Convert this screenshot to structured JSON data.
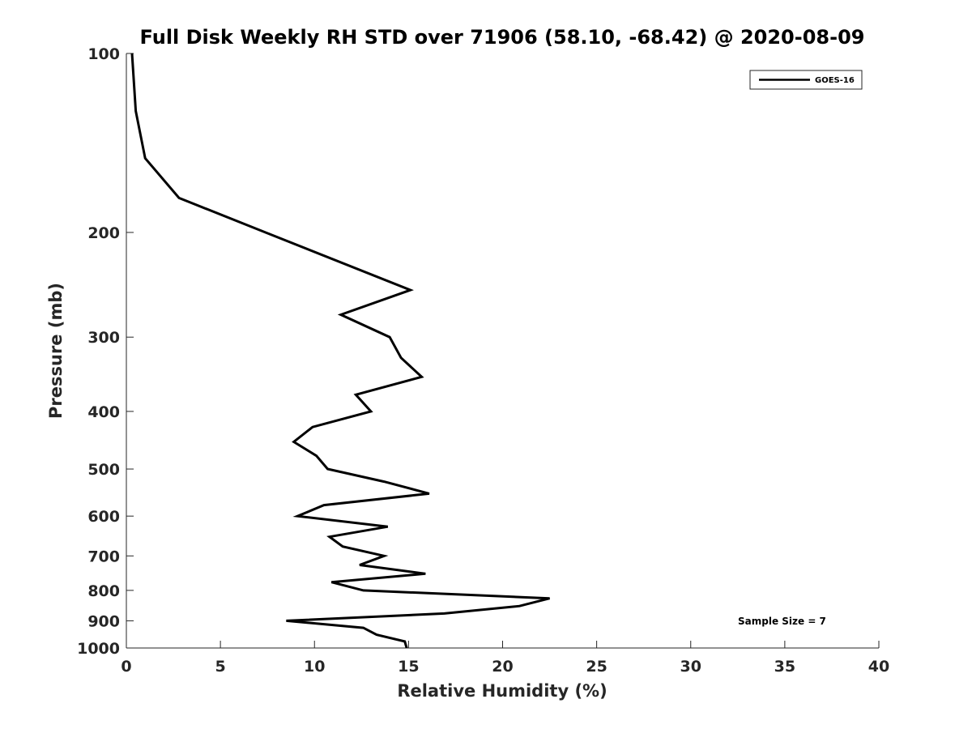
{
  "chart_data": {
    "type": "line",
    "title": "Full Disk Weekly RH STD over 71906 (58.10, -68.42) @ 2020-08-09",
    "xlabel": "Relative Humidity (%)",
    "ylabel": "Pressure (mb)",
    "xlim": [
      0,
      40
    ],
    "ylim": [
      100,
      1000
    ],
    "y_scale": "log",
    "y_reversed": true,
    "grid": false,
    "legend_position": "top-right",
    "xticks": [
      0,
      5,
      10,
      15,
      20,
      25,
      30,
      35,
      40
    ],
    "yticks": [
      100,
      200,
      300,
      400,
      500,
      600,
      700,
      800,
      900,
      1000
    ],
    "annotation": "Sample Size = 7",
    "series": [
      {
        "name": "GOES-16",
        "color": "#000000",
        "points": [
          {
            "rh": 0.3,
            "p": 100
          },
          {
            "rh": 0.5,
            "p": 125
          },
          {
            "rh": 1.0,
            "p": 150
          },
          {
            "rh": 2.8,
            "p": 175
          },
          {
            "rh": 7.4,
            "p": 200
          },
          {
            "rh": 15.1,
            "p": 250
          },
          {
            "rh": 11.4,
            "p": 275
          },
          {
            "rh": 14.0,
            "p": 300
          },
          {
            "rh": 14.6,
            "p": 325
          },
          {
            "rh": 15.7,
            "p": 350
          },
          {
            "rh": 12.2,
            "p": 375
          },
          {
            "rh": 13.0,
            "p": 400
          },
          {
            "rh": 9.9,
            "p": 425
          },
          {
            "rh": 8.9,
            "p": 450
          },
          {
            "rh": 10.1,
            "p": 475
          },
          {
            "rh": 10.7,
            "p": 500
          },
          {
            "rh": 13.7,
            "p": 525
          },
          {
            "rh": 16.1,
            "p": 550
          },
          {
            "rh": 10.5,
            "p": 575
          },
          {
            "rh": 9.1,
            "p": 600
          },
          {
            "rh": 13.9,
            "p": 625
          },
          {
            "rh": 10.8,
            "p": 650
          },
          {
            "rh": 11.5,
            "p": 675
          },
          {
            "rh": 13.7,
            "p": 700
          },
          {
            "rh": 12.4,
            "p": 725
          },
          {
            "rh": 15.9,
            "p": 750
          },
          {
            "rh": 10.9,
            "p": 775
          },
          {
            "rh": 12.6,
            "p": 800
          },
          {
            "rh": 22.5,
            "p": 825
          },
          {
            "rh": 20.9,
            "p": 850
          },
          {
            "rh": 16.9,
            "p": 875
          },
          {
            "rh": 8.5,
            "p": 900
          },
          {
            "rh": 12.6,
            "p": 925
          },
          {
            "rh": 13.3,
            "p": 950
          },
          {
            "rh": 14.8,
            "p": 975
          },
          {
            "rh": 14.9,
            "p": 1000
          }
        ]
      }
    ]
  }
}
